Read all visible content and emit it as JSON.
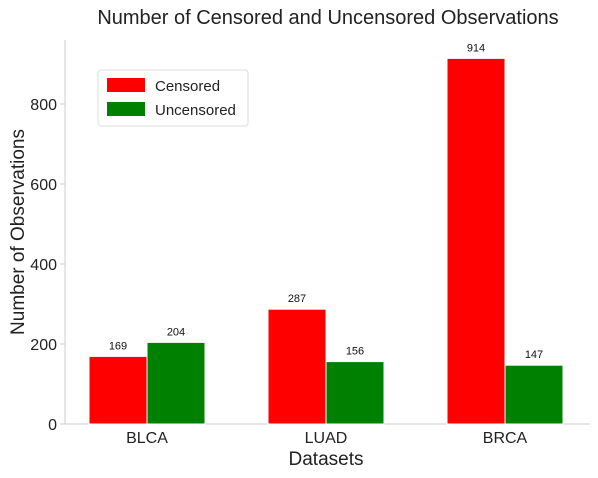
{
  "chart_data": {
    "type": "bar",
    "title": "Number of Censored and Uncensored Observations",
    "xlabel": "Datasets",
    "ylabel": "Number of Observations",
    "categories": [
      "BLCA",
      "LUAD",
      "BRCA"
    ],
    "series": [
      {
        "name": "Censored",
        "color": "#ff0000",
        "values": [
          169,
          287,
          914
        ]
      },
      {
        "name": "Uncensored",
        "color": "#008000",
        "values": [
          204,
          156,
          147
        ]
      }
    ],
    "ylim": [
      0,
      960
    ],
    "yticks": [
      0,
      200,
      400,
      600,
      800
    ],
    "grid": false,
    "legend_position": "top-left"
  }
}
